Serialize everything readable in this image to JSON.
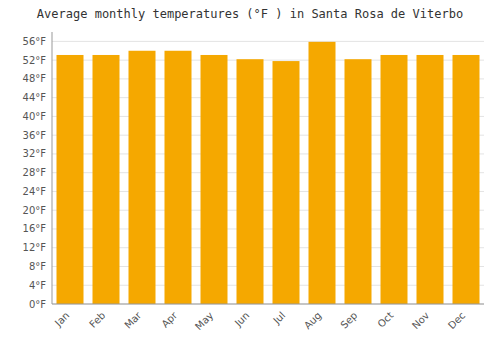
{
  "chart_data": {
    "type": "bar",
    "title": "Average monthly temperatures (°F ) in Santa Rosa de Viterbo",
    "categories": [
      "Jan",
      "Feb",
      "Mar",
      "Apr",
      "May",
      "Jun",
      "Jul",
      "Aug",
      "Sep",
      "Oct",
      "Nov",
      "Dec"
    ],
    "values": [
      53.1,
      53.1,
      54.0,
      54.0,
      53.1,
      52.2,
      51.8,
      55.9,
      52.2,
      53.1,
      53.1,
      53.1
    ],
    "color": "#F5A800",
    "ylim": [
      0,
      58
    ],
    "yticks": [
      {
        "value": 0,
        "label": "0°F"
      },
      {
        "value": 4,
        "label": "4°F"
      },
      {
        "value": 8,
        "label": "8°F"
      },
      {
        "value": 12,
        "label": "12°F"
      },
      {
        "value": 16,
        "label": "16°F"
      },
      {
        "value": 20,
        "label": "20°F"
      },
      {
        "value": 24,
        "label": "24°F"
      },
      {
        "value": 28,
        "label": "28°F"
      },
      {
        "value": 32,
        "label": "32°F"
      },
      {
        "value": 36,
        "label": "36°F"
      },
      {
        "value": 40,
        "label": "40°F"
      },
      {
        "value": 44,
        "label": "44°F"
      },
      {
        "value": 48,
        "label": "48°F"
      },
      {
        "value": 52,
        "label": "52°F"
      },
      {
        "value": 56,
        "label": "56°F"
      }
    ],
    "grid": true
  }
}
